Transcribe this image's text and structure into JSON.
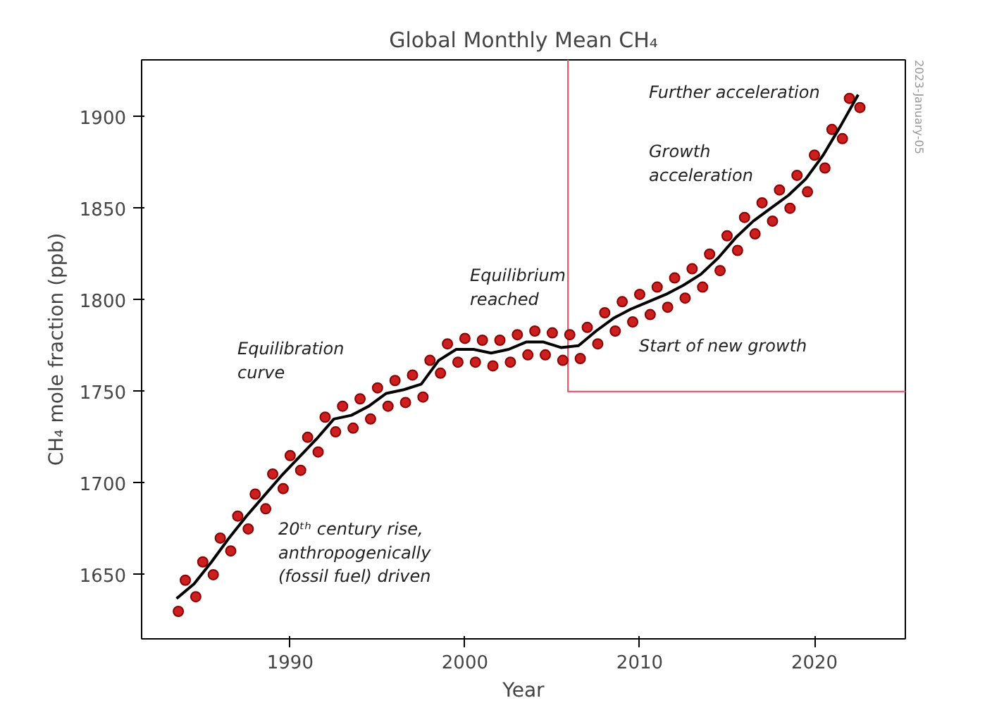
{
  "chart_data": {
    "type": "line",
    "title": "Global Monthly Mean CH₄",
    "xlabel": "Year",
    "ylabel": "CH₄ mole fraction (ppb)",
    "xlim": [
      1981.5,
      2025.2
    ],
    "ylim": [
      1615,
      1931
    ],
    "xticks": [
      1990,
      2000,
      2010,
      2020
    ],
    "yticks": [
      1650,
      1700,
      1750,
      1800,
      1850,
      1900
    ],
    "grid": false,
    "series": [
      {
        "type": "line",
        "color": "#e0606e",
        "line_style": "solid",
        "x": [
          2005.9,
          2005.9,
          2025.2
        ],
        "values": [
          1931,
          1750,
          1750
        ]
      },
      {
        "type": "scatter",
        "color": "#cc1f1f",
        "marker": "circle",
        "x": [
          1983.6,
          1984.0,
          1984.6,
          1985.0,
          1985.6,
          1986.0,
          1986.6,
          1987.0,
          1987.6,
          1988.0,
          1988.6,
          1989.0,
          1989.6,
          1990.0,
          1990.6,
          1991.0,
          1991.6,
          1992.0,
          1992.6,
          1993.0,
          1993.6,
          1994.0,
          1994.6,
          1995.0,
          1995.6,
          1996.0,
          1996.6,
          1997.0,
          1997.6,
          1998.0,
          1998.6,
          1999.0,
          1999.6,
          2000.0,
          2000.6,
          2001.0,
          2001.6,
          2002.0,
          2002.6,
          2003.0,
          2003.6,
          2004.0,
          2004.6,
          2005.0,
          2005.6,
          2006.0,
          2006.6,
          2007.0,
          2007.6,
          2008.0,
          2008.6,
          2009.0,
          2009.6,
          2010.0,
          2010.6,
          2011.0,
          2011.6,
          2012.0,
          2012.6,
          2013.0,
          2013.6,
          2014.0,
          2014.6,
          2015.0,
          2015.6,
          2016.0,
          2016.6,
          2017.0,
          2017.6,
          2018.0,
          2018.6,
          2019.0,
          2019.6,
          2020.0,
          2020.6,
          2021.0,
          2021.6,
          2022.0,
          2022.6
        ],
        "values": [
          1630,
          1647,
          1638,
          1657,
          1650,
          1670,
          1663,
          1682,
          1675,
          1694,
          1686,
          1705,
          1697,
          1715,
          1707,
          1725,
          1717,
          1736,
          1728,
          1742,
          1730,
          1746,
          1735,
          1752,
          1742,
          1756,
          1744,
          1759,
          1747,
          1767,
          1760,
          1776,
          1766,
          1779,
          1766,
          1778,
          1764,
          1778,
          1766,
          1781,
          1770,
          1783,
          1770,
          1782,
          1767,
          1781,
          1768,
          1785,
          1776,
          1793,
          1783,
          1799,
          1788,
          1803,
          1792,
          1807,
          1796,
          1812,
          1801,
          1817,
          1807,
          1825,
          1816,
          1835,
          1827,
          1845,
          1836,
          1853,
          1843,
          1860,
          1850,
          1868,
          1859,
          1879,
          1872,
          1893,
          1888,
          1910,
          1905
        ]
      },
      {
        "color": "#000000",
        "line_style": "solid",
        "x": [
          1983.5,
          1984.5,
          1985.5,
          1986.5,
          1987.5,
          1988.5,
          1989.5,
          1990.5,
          1991.5,
          1992.5,
          1993.5,
          1994.5,
          1995.5,
          1996.5,
          1997.5,
          1998.5,
          1999.5,
          2000.5,
          2001.5,
          2002.5,
          2003.5,
          2004.5,
          2005.5,
          2006.5,
          2007.5,
          2008.5,
          2009.5,
          2010.5,
          2011.5,
          2012.5,
          2013.5,
          2014.5,
          2015.5,
          2016.5,
          2017.5,
          2018.5,
          2019.5,
          2020.5,
          2021.5,
          2022.5
        ],
        "values": [
          1637,
          1645,
          1657,
          1670,
          1682,
          1693,
          1704,
          1714,
          1724,
          1735,
          1737,
          1742,
          1749,
          1751,
          1754,
          1767,
          1773,
          1773,
          1771,
          1773,
          1777,
          1777,
          1774,
          1775,
          1783,
          1790,
          1795,
          1799,
          1803,
          1808,
          1814,
          1823,
          1834,
          1843,
          1850,
          1857,
          1866,
          1879,
          1895,
          1912
        ]
      }
    ],
    "annotations": [
      "Equilibration\ncurve",
      "20ᵗʰ century rise,\nanthropogenically\n(fossil fuel) driven",
      "Equilibrium\nreached",
      "Start of new growth",
      "Growth\nacceleration",
      "Further acceleration",
      "2023-January-05"
    ]
  }
}
